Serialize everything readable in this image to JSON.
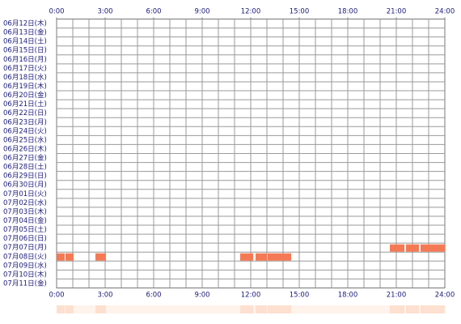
{
  "chart_data": {
    "type": "timeline",
    "categories": [
      "06月12日(木)",
      "06月13日(金)",
      "06月14日(土)",
      "06月15日(日)",
      "06月16日(月)",
      "06月17日(火)",
      "06月18日(水)",
      "06月19日(木)",
      "06月20日(金)",
      "06月21日(土)",
      "06月22日(日)",
      "06月23日(月)",
      "06月24日(火)",
      "06月25日(水)",
      "06月26日(木)",
      "06月27日(金)",
      "06月28日(土)",
      "06月29日(日)",
      "06月30日(月)",
      "07月01日(火)",
      "07月02日(水)",
      "07月03日(木)",
      "07月04日(金)",
      "07月05日(土)",
      "07月06日(日)",
      "07月07日(月)",
      "07月08日(火)",
      "07月09日(水)",
      "07月10日(木)",
      "07月11日(金)"
    ],
    "values": [
      [],
      [],
      [],
      [],
      [],
      [],
      [],
      [],
      [],
      [],
      [],
      [],
      [],
      [],
      [],
      [],
      [],
      [],
      [],
      [],
      [],
      [],
      [],
      [],
      [],
      [
        [
          20.6,
          21.5
        ],
        [
          21.6,
          22.4
        ],
        [
          22.5,
          24
        ]
      ],
      [
        [
          0,
          0.5
        ],
        [
          0.55,
          1.05
        ],
        [
          2.4,
          3.05
        ],
        [
          11.35,
          12.15
        ],
        [
          12.3,
          13
        ],
        [
          13.05,
          14.5
        ]
      ],
      [],
      [],
      []
    ],
    "xlim": [
      0,
      24
    ],
    "xticks": [
      {
        "value": 0,
        "label": "0:00"
      },
      {
        "value": 3,
        "label": "3:00"
      },
      {
        "value": 6,
        "label": "6:00"
      },
      {
        "value": 9,
        "label": "9:00"
      },
      {
        "value": 12,
        "label": "12:00"
      },
      {
        "value": 15,
        "label": "15:00"
      },
      {
        "value": 18,
        "label": "18:00"
      },
      {
        "value": 21,
        "label": "21:00"
      },
      {
        "value": 24,
        "label": "24:00"
      }
    ],
    "grid_step": 1,
    "grid": true,
    "color": "#f47a55",
    "summary_color": "#fde0cf",
    "summary_background": "#fff3ec"
  }
}
